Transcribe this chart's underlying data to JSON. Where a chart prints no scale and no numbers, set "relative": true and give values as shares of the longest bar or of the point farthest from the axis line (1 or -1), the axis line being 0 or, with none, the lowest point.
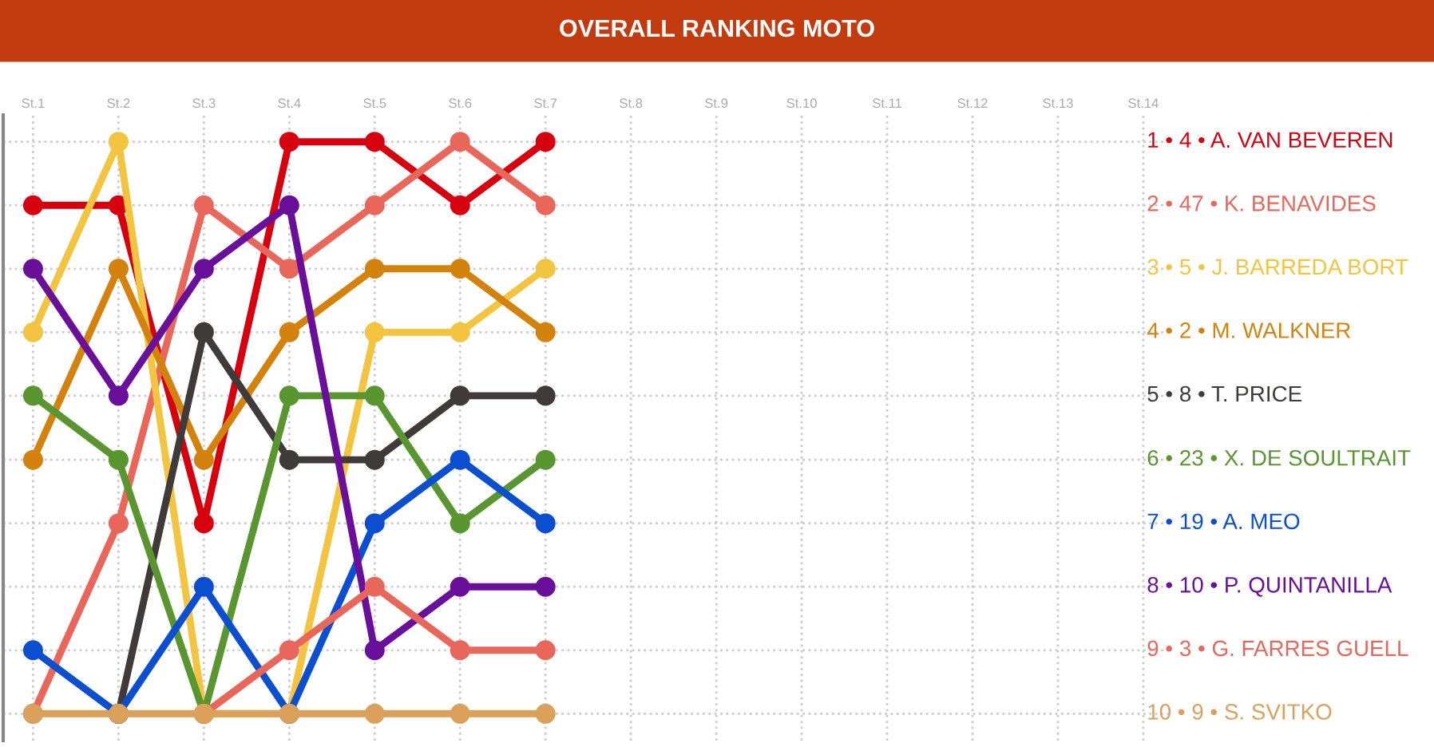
{
  "chart_data": {
    "type": "line",
    "title": "OVERALL RANKING MOTO",
    "relative": true,
    "categories": [
      "St.1",
      "St.2",
      "St.3",
      "St.4",
      "St.5",
      "St.6",
      "St.7",
      "St.8",
      "St.9",
      "St.10",
      "St.11",
      "St.12",
      "St.13",
      "St.14"
    ],
    "series": [
      {
        "name": "1 • 4 • A. VAN BEVEREN",
        "color": "#d7000f",
        "values": [
          0.889,
          0.889,
          0.333,
          1,
          1,
          0.889,
          1,
          null,
          null,
          null,
          null,
          null,
          null,
          null
        ]
      },
      {
        "name": "2 • 47 • K. BENAVIDES",
        "color": "#e8675a",
        "values": [
          0,
          0.333,
          0.889,
          0.778,
          0.889,
          1,
          0.889,
          null,
          null,
          null,
          null,
          null,
          null,
          null
        ]
      },
      {
        "name": "3 • 5 • J. BARREDA BORT",
        "color": "#f3c440",
        "values": [
          0.667,
          1,
          0,
          0,
          0.667,
          0.667,
          0.778,
          null,
          null,
          null,
          null,
          null,
          null,
          null
        ]
      },
      {
        "name": "4 • 2 • M. WALKNER",
        "color": "#d4820e",
        "values": [
          0.444,
          0.778,
          0.444,
          0.667,
          0.778,
          0.778,
          0.667,
          null,
          null,
          null,
          null,
          null,
          null,
          null
        ]
      },
      {
        "name": "5 • 8 • T. PRICE",
        "color": "#403a3a",
        "values": [
          null,
          0,
          0.667,
          0.444,
          0.444,
          0.556,
          0.556,
          null,
          null,
          null,
          null,
          null,
          null,
          null
        ]
      },
      {
        "name": "6 • 23 • X. DE SOULTRAIT",
        "color": "#5a9630",
        "values": [
          0.556,
          0.444,
          0,
          0.556,
          0.556,
          0.333,
          0.444,
          null,
          null,
          null,
          null,
          null,
          null,
          null
        ]
      },
      {
        "name": "7 • 19 • A. MEO",
        "color": "#0b4fd0",
        "values": [
          0.111,
          0,
          0.222,
          0,
          0.333,
          0.444,
          0.333,
          null,
          null,
          null,
          null,
          null,
          null,
          null
        ]
      },
      {
        "name": "8 • 10 • P. QUINTANILLA",
        "color": "#6a0f9a",
        "values": [
          0.778,
          0.556,
          0.778,
          0.889,
          0.111,
          0.222,
          0.222,
          null,
          null,
          null,
          null,
          null,
          null,
          null
        ]
      },
      {
        "name": "9 • 3 • G. FARRES GUELL",
        "color": "#e8675a",
        "values": [
          null,
          null,
          0,
          0.111,
          0.222,
          0.111,
          0.111,
          null,
          null,
          null,
          null,
          null,
          null,
          null
        ]
      },
      {
        "name": "10 • 9 • S. SVITKO",
        "color": "#dba05a",
        "values": [
          0,
          0,
          0,
          0,
          0,
          0,
          0,
          null,
          null,
          null,
          null,
          null,
          null,
          null
        ]
      }
    ],
    "tick_labels": "x",
    "grid": true,
    "marker": "circle",
    "line_style": "solid"
  }
}
